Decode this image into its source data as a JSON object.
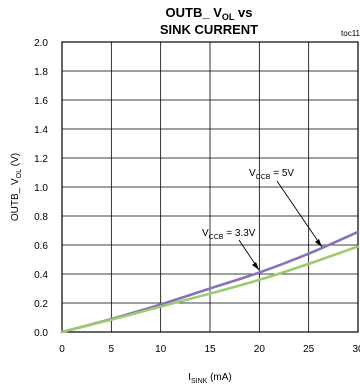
{
  "chart_data": {
    "type": "line",
    "title_line1_main": "OUTB_ V",
    "title_line1_sub": "OL",
    "title_line1_tail": " vs",
    "title_line2": "SINK CURRENT",
    "tag": "toc11",
    "xlabel_main": "I",
    "xlabel_sub": "SINK",
    "xlabel_tail": " (mA)",
    "ylabel_main": "OUTB_ V",
    "ylabel_sub": "OL",
    "ylabel_tail": " (V)",
    "xlim": [
      0,
      30
    ],
    "ylim": [
      0,
      2.0
    ],
    "x_ticks": [
      "0",
      "5",
      "10",
      "15",
      "20",
      "25",
      "30"
    ],
    "y_ticks": [
      "0.0",
      "0.2",
      "0.4",
      "0.6",
      "0.8",
      "1.0",
      "1.2",
      "1.4",
      "1.6",
      "1.8",
      "2.0"
    ],
    "grid": true,
    "series": [
      {
        "name": "VCCB = 5V",
        "color": "#8a72b8",
        "x": [
          0,
          5,
          10,
          15,
          20,
          25,
          30
        ],
        "y": [
          0,
          0.09,
          0.19,
          0.3,
          0.41,
          0.54,
          0.69
        ]
      },
      {
        "name": "VCCB = 3.3V",
        "color": "#9ccc6e",
        "x": [
          0,
          5,
          10,
          15,
          20,
          25,
          30
        ],
        "y": [
          0,
          0.085,
          0.175,
          0.265,
          0.36,
          0.47,
          0.59
        ]
      }
    ],
    "annotations": [
      {
        "main": "V",
        "sub": "CCB",
        "tail": " = 5V"
      },
      {
        "main": "V",
        "sub": "CCB",
        "tail": " = 3.3V"
      }
    ]
  }
}
